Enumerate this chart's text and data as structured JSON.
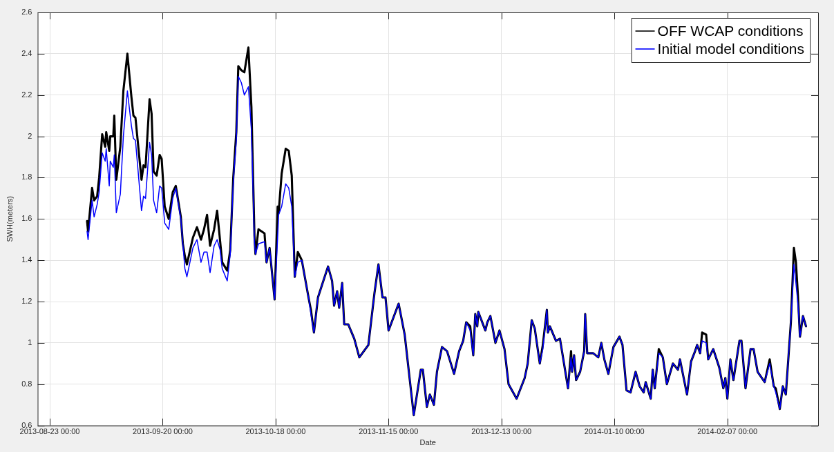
{
  "chart_data": {
    "type": "line",
    "xlabel": "Date",
    "ylabel": "SWH(meters)",
    "legend": "top right",
    "grid": true,
    "marker": "none",
    "line_style": "solid",
    "xlim": [
      "2013-08-20",
      "2014-03-01T12:00"
    ],
    "xticks": [
      {
        "value": "2013-08-23",
        "label": "2013-08-23 00:00"
      },
      {
        "value": "2013-09-20",
        "label": "2013-09-20 00:00"
      },
      {
        "value": "2013-10-18",
        "label": "2013-10-18 00:00"
      },
      {
        "value": "2013-11-15",
        "label": "2013-11-15 00:00"
      },
      {
        "value": "2013-12-13",
        "label": "2013-12-13 00:00"
      },
      {
        "value": "2014-01-10",
        "label": "2014-01-10 00:00"
      },
      {
        "value": "2014-02-07",
        "label": "2014-02-07 00:00"
      }
    ],
    "ylim": [
      0.6,
      2.6
    ],
    "yticks": [
      0.6,
      0.8,
      1,
      1.2,
      1.4,
      1.6,
      1.8,
      2,
      2.2,
      2.4,
      2.6
    ],
    "x": [
      "2013-09-01T06:00",
      "2013-09-01T12:00",
      "2013-09-02T12:00",
      "2013-09-03T00:00",
      "2013-09-03T18:00",
      "2013-09-04T06:00",
      "2013-09-05T00:00",
      "2013-09-05T18:00",
      "2013-09-06T00:00",
      "2013-09-06T18:00",
      "2013-09-07T00:00",
      "2013-09-07T18:00",
      "2013-09-08T00:00",
      "2013-09-08T12:00",
      "2013-09-09T12:00",
      "2013-09-10T06:00",
      "2013-09-11T06:00",
      "2013-09-12T06:00",
      "2013-09-12T18:00",
      "2013-09-13T06:00",
      "2013-09-14T18:00",
      "2013-09-15T06:00",
      "2013-09-15T18:00",
      "2013-09-16T18:00",
      "2013-09-17T06:00",
      "2013-09-17T18:00",
      "2013-09-18T12:00",
      "2013-09-19T06:00",
      "2013-09-19T18:00",
      "2013-09-20T12:00",
      "2013-09-21T12:00",
      "2013-09-22T12:00",
      "2013-09-23T06:00",
      "2013-09-24T12:00",
      "2013-09-25T00:00",
      "2013-09-25T12:00",
      "2013-09-26T00:00",
      "2013-09-27T12:00",
      "2013-09-28T12:00",
      "2013-09-29T12:00",
      "2013-09-30T06:00",
      "2013-10-01T00:00",
      "2013-10-01T18:00",
      "2013-10-02T18:00",
      "2013-10-03T12:00",
      "2013-10-04T06:00",
      "2013-10-04T18:00",
      "2013-10-06T00:00",
      "2013-10-06T18:00",
      "2013-10-07T12:00",
      "2013-10-08T06:00",
      "2013-10-08T18:00",
      "2013-10-09T12:00",
      "2013-10-10T06:00",
      "2013-10-11T06:00",
      "2013-10-12T00:00",
      "2013-10-12T18:00",
      "2013-10-13T00:00",
      "2013-10-13T18:00",
      "2013-10-15T06:00",
      "2013-10-15T18:00",
      "2013-10-16T12:00",
      "2013-10-17T18:00",
      "2013-10-18T12:00",
      "2013-10-18T18:00",
      "2013-10-19T12:00",
      "2013-10-20T12:00",
      "2013-10-21T06:00",
      "2013-10-22T00:00",
      "2013-10-22T18:00",
      "2013-10-23T12:00",
      "2013-10-24T12:00",
      "2013-10-26T06:00",
      "2013-10-26T18:00",
      "2013-10-27T12:00",
      "2013-10-28T12:00",
      "2013-10-29T12:00",
      "2013-10-31T00:00",
      "2013-11-01T00:00",
      "2013-11-01T12:00",
      "2013-11-02T06:00",
      "2013-11-02T18:00",
      "2013-11-03T12:00",
      "2013-11-04T00:00",
      "2013-11-05T00:00",
      "2013-11-06T12:00",
      "2013-11-07T18:00",
      "2013-11-10T00:00",
      "2013-11-11T12:00",
      "2013-11-12T12:00",
      "2013-11-13T12:00",
      "2013-11-14T06:00",
      "2013-11-15T00:00",
      "2013-11-17T12:00",
      "2013-11-19T00:00",
      "2013-11-21T06:00",
      "2013-11-23T00:00",
      "2013-11-23T12:00",
      "2013-11-24T12:00",
      "2013-11-25T06:00",
      "2013-11-26T06:00",
      "2013-11-27T00:00",
      "2013-11-28T06:00",
      "2013-11-29T12:00",
      "2013-12-01T06:00",
      "2013-12-02T12:00",
      "2013-12-03T12:00",
      "2013-12-04T06:00",
      "2013-12-05T06:00",
      "2013-12-06T00:00",
      "2013-12-06T12:00",
      "2013-12-07T00:00",
      "2013-12-07T06:00",
      "2013-12-09T00:00",
      "2013-12-09T12:00",
      "2013-12-10T06:00",
      "2013-12-11T12:00",
      "2013-12-12T12:00",
      "2013-12-13T18:00",
      "2013-12-14T18:00",
      "2013-12-16T18:00",
      "2013-12-18T18:00",
      "2013-12-19T12:00",
      "2013-12-20T12:00",
      "2013-12-21T06:00",
      "2013-12-22T12:00",
      "2013-12-23T06:00",
      "2013-12-24T06:00",
      "2013-12-24T12:00",
      "2013-12-25T00:00",
      "2013-12-26T12:00",
      "2013-12-27T12:00",
      "2013-12-29T12:00",
      "2013-12-30T06:00",
      "2013-12-30T12:00",
      "2013-12-31T00:00",
      "2013-12-31T12:00",
      "2014-01-01T12:00",
      "2014-01-02T12:00",
      "2014-01-02T18:00",
      "2014-01-03T06:00",
      "2014-01-04T18:00",
      "2014-01-06T00:00",
      "2014-01-06T18:00",
      "2014-01-07T12:00",
      "2014-01-08T12:00",
      "2014-01-09T18:00",
      "2014-01-11T06:00",
      "2014-01-12T00:00",
      "2014-01-13T00:00",
      "2014-01-14T00:00",
      "2014-01-15T06:00",
      "2014-01-16T06:00",
      "2014-01-17T06:00",
      "2014-01-17T18:00",
      "2014-01-19T00:00",
      "2014-01-19T12:00",
      "2014-01-20T00:00",
      "2014-01-21T00:00",
      "2014-01-22T00:00",
      "2014-01-23T00:00",
      "2014-01-24T12:00",
      "2014-01-25T18:00",
      "2014-01-26T06:00",
      "2014-01-28T00:00",
      "2014-01-29T00:00",
      "2014-01-30T00:00",
      "2014-01-30T12:00",
      "2014-01-31T06:00",
      "2014-01-31T18:00",
      "2014-02-01T18:00",
      "2014-02-02T06:00",
      "2014-02-03T12:00",
      "2014-02-05T00:00",
      "2014-02-06T00:00",
      "2014-02-06T12:00",
      "2014-02-07T00:00",
      "2014-02-07T18:00",
      "2014-02-08T12:00",
      "2014-02-10T00:00",
      "2014-02-10T12:00",
      "2014-02-11T12:00",
      "2014-02-12T18:00",
      "2014-02-13T12:00",
      "2014-02-14T12:00",
      "2014-02-16T06:00",
      "2014-02-17T12:00",
      "2014-02-18T12:00",
      "2014-02-19T00:00",
      "2014-02-20T00:00",
      "2014-02-20T18:00",
      "2014-02-21T12:00",
      "2014-02-22T18:00",
      "2014-02-23T12:00",
      "2014-02-24T00:00",
      "2014-02-24T12:00",
      "2014-02-25T00:00",
      "2014-02-25T18:00",
      "2014-02-26T12:00"
    ],
    "series": [
      {
        "name": "OFF WCAP conditions",
        "color": "#000000",
        "values": [
          1.59,
          1.54,
          1.75,
          1.69,
          1.71,
          1.8,
          2.01,
          1.95,
          2.02,
          1.93,
          2,
          2,
          2.1,
          1.79,
          1.95,
          2.22,
          2.4,
          2.19,
          2.1,
          2.09,
          1.79,
          1.86,
          1.85,
          2.18,
          2.11,
          1.83,
          1.81,
          1.91,
          1.89,
          1.66,
          1.6,
          1.73,
          1.76,
          1.61,
          1.48,
          1.42,
          1.38,
          1.51,
          1.56,
          1.5,
          1.55,
          1.62,
          1.47,
          1.55,
          1.64,
          1.49,
          1.39,
          1.35,
          1.45,
          1.8,
          2.02,
          2.34,
          2.32,
          2.31,
          2.43,
          2.14,
          1.52,
          1.43,
          1.55,
          1.53,
          1.39,
          1.46,
          1.21,
          1.66,
          1.63,
          1.82,
          1.94,
          1.93,
          1.81,
          1.32,
          1.44,
          1.4,
          1.21,
          1.16,
          1.05,
          1.22,
          1.28,
          1.37,
          1.3,
          1.18,
          1.25,
          1.17,
          1.29,
          1.09,
          1.09,
          1.02,
          0.93,
          0.99,
          1.24,
          1.38,
          1.22,
          1.22,
          1.06,
          1.19,
          1.04,
          0.65,
          0.87,
          0.87,
          0.69,
          0.75,
          0.7,
          0.86,
          0.98,
          0.96,
          0.85,
          0.96,
          1.01,
          1.1,
          1.08,
          0.94,
          1.14,
          1.08,
          1.15,
          1.06,
          1.1,
          1.13,
          1,
          1.06,
          0.97,
          0.8,
          0.73,
          0.83,
          0.9,
          1.11,
          1.07,
          0.9,
          0.99,
          1.16,
          1.05,
          1.08,
          1.01,
          1.02,
          0.78,
          0.96,
          0.86,
          0.94,
          0.82,
          0.86,
          0.96,
          1.14,
          0.95,
          0.95,
          0.93,
          1,
          0.92,
          0.85,
          0.98,
          1.03,
          0.99,
          0.77,
          0.76,
          0.86,
          0.79,
          0.76,
          0.81,
          0.73,
          0.87,
          0.78,
          0.97,
          0.93,
          0.8,
          0.9,
          0.87,
          0.92,
          0.75,
          0.91,
          0.96,
          0.99,
          0.95,
          1.05,
          1.04,
          0.92,
          0.97,
          0.88,
          0.78,
          0.83,
          0.73,
          0.92,
          0.82,
          1.01,
          1.01,
          0.78,
          0.97,
          0.97,
          0.86,
          0.81,
          0.92,
          0.79,
          0.78,
          0.68,
          0.79,
          0.75,
          1.1,
          1.46,
          1.39,
          1.23,
          1.03,
          1.13,
          1.08
        ]
      },
      {
        "name": "Initial model conditions",
        "color": "#0000ff",
        "values": [
          1.54,
          1.5,
          1.69,
          1.61,
          1.67,
          1.73,
          1.92,
          1.88,
          1.94,
          1.76,
          1.88,
          1.85,
          1.91,
          1.63,
          1.72,
          2,
          2.22,
          2.05,
          1.99,
          1.98,
          1.64,
          1.71,
          1.7,
          1.97,
          1.91,
          1.69,
          1.63,
          1.76,
          1.75,
          1.58,
          1.55,
          1.7,
          1.75,
          1.6,
          1.48,
          1.36,
          1.32,
          1.46,
          1.5,
          1.39,
          1.44,
          1.44,
          1.34,
          1.47,
          1.5,
          1.45,
          1.36,
          1.3,
          1.43,
          1.78,
          1.98,
          2.29,
          2.26,
          2.2,
          2.24,
          2.03,
          1.49,
          1.43,
          1.48,
          1.49,
          1.39,
          1.46,
          1.21,
          1.51,
          1.62,
          1.66,
          1.77,
          1.75,
          1.66,
          1.32,
          1.39,
          1.4,
          1.21,
          1.14,
          1.05,
          1.22,
          1.28,
          1.37,
          1.3,
          1.18,
          1.25,
          1.17,
          1.29,
          1.09,
          1.09,
          1.02,
          0.93,
          0.99,
          1.24,
          1.38,
          1.22,
          1.22,
          1.06,
          1.19,
          1.04,
          0.65,
          0.87,
          0.87,
          0.69,
          0.75,
          0.7,
          0.86,
          0.98,
          0.96,
          0.85,
          0.96,
          1.01,
          1.1,
          1.06,
          0.94,
          1.14,
          1.08,
          1.15,
          1.06,
          1.1,
          1.13,
          1,
          1.06,
          0.97,
          0.8,
          0.73,
          0.83,
          0.9,
          1.11,
          1.07,
          0.9,
          0.97,
          1.16,
          1.05,
          1.08,
          1.01,
          1.02,
          0.78,
          0.93,
          0.86,
          0.94,
          0.82,
          0.86,
          0.96,
          1.14,
          0.95,
          0.95,
          0.93,
          1,
          0.92,
          0.85,
          0.98,
          1.03,
          0.99,
          0.77,
          0.76,
          0.86,
          0.79,
          0.76,
          0.81,
          0.73,
          0.87,
          0.78,
          0.95,
          0.93,
          0.8,
          0.9,
          0.87,
          0.92,
          0.75,
          0.91,
          0.96,
          0.99,
          0.95,
          1.01,
          1,
          0.92,
          0.97,
          0.88,
          0.78,
          0.83,
          0.73,
          0.92,
          0.82,
          1.01,
          1.01,
          0.78,
          0.97,
          0.97,
          0.86,
          0.81,
          0.9,
          0.79,
          0.76,
          0.68,
          0.79,
          0.75,
          1.1,
          1.38,
          1.29,
          1.19,
          1.03,
          1.13,
          1.08
        ]
      }
    ]
  }
}
